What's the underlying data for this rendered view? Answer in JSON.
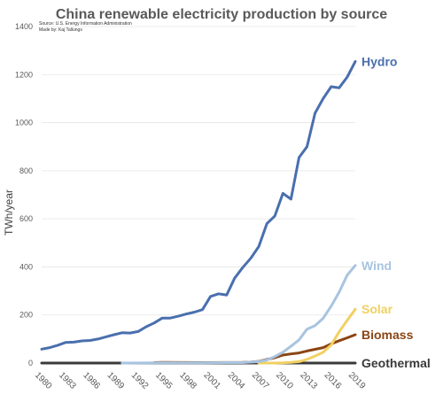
{
  "chart_data": {
    "type": "line",
    "title": "China renewable electricity production by source",
    "source_line1": "Source: U.S. Energy Information Administration",
    "source_line2": "Made by: Kaj Tallungs",
    "ylabel": "TWh/year",
    "ylim": [
      0,
      1400
    ],
    "yticks": [
      0,
      200,
      400,
      600,
      800,
      1000,
      1200,
      1400
    ],
    "xlim": [
      1980,
      2019
    ],
    "xticks": [
      1980,
      1983,
      1986,
      1989,
      1992,
      1995,
      1998,
      2001,
      2004,
      2007,
      2010,
      2013,
      2016,
      2019
    ],
    "grid": true,
    "legend": "labels at line ends",
    "series": [
      {
        "name": "Hydro",
        "color": "#4a6fae",
        "x": [
          1980,
          1981,
          1982,
          1983,
          1984,
          1985,
          1986,
          1987,
          1988,
          1989,
          1990,
          1991,
          1992,
          1993,
          1994,
          1995,
          1996,
          1997,
          1998,
          1999,
          2000,
          2001,
          2002,
          2003,
          2004,
          2005,
          2006,
          2007,
          2008,
          2009,
          2010,
          2011,
          2012,
          2013,
          2014,
          2015,
          2016,
          2017,
          2018,
          2019
        ],
        "y": [
          58,
          64,
          74,
          86,
          87,
          92,
          94,
          100,
          109,
          118,
          126,
          125,
          131,
          151,
          167,
          187,
          187,
          195,
          204,
          212,
          222,
          277,
          288,
          283,
          353,
          397,
          436,
          485,
          580,
          612,
          706,
          682,
          855,
          900,
          1040,
          1100,
          1150,
          1145,
          1190,
          1255
        ]
      },
      {
        "name": "Wind",
        "color": "#a8c4e0",
        "x": [
          1990,
          1995,
          2000,
          2003,
          2005,
          2006,
          2007,
          2008,
          2009,
          2010,
          2011,
          2012,
          2013,
          2014,
          2015,
          2016,
          2017,
          2018,
          2019
        ],
        "y": [
          0,
          1,
          1,
          2,
          2,
          4,
          6,
          13,
          27,
          45,
          70,
          96,
          141,
          156,
          186,
          237,
          295,
          366,
          406
        ]
      },
      {
        "name": "Solar",
        "color": "#f2d060",
        "x": [
          2007,
          2008,
          2009,
          2010,
          2011,
          2012,
          2013,
          2014,
          2015,
          2016,
          2017,
          2018,
          2019
        ],
        "y": [
          0,
          0,
          0,
          1,
          3,
          6,
          15,
          29,
          45,
          75,
          130,
          178,
          224
        ]
      },
      {
        "name": "Biomass",
        "color": "#8b4513",
        "x": [
          1994,
          1995,
          2000,
          2005,
          2006,
          2007,
          2008,
          2009,
          2010,
          2011,
          2012,
          2013,
          2014,
          2015,
          2016,
          2017,
          2018,
          2019
        ],
        "y": [
          2,
          3,
          2,
          3,
          4,
          7,
          15,
          22,
          33,
          38,
          42,
          50,
          57,
          64,
          80,
          93,
          105,
          118
        ]
      },
      {
        "name": "Geothermal",
        "color": "#3a3a3a",
        "x": [
          1980,
          2019
        ],
        "y": [
          0,
          0
        ]
      }
    ]
  }
}
